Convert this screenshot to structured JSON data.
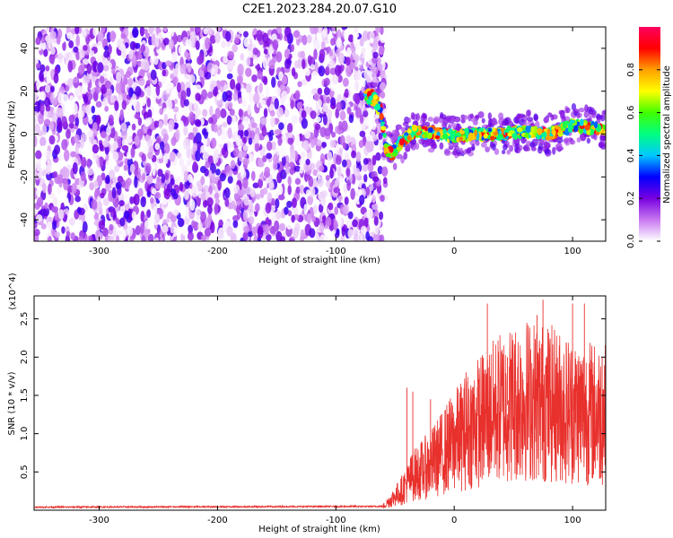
{
  "title": "C2E1.2023.284.20.07.G10",
  "chart_data": [
    {
      "type": "heatmap",
      "name": "spectrogram",
      "xlabel": "Height of straight line (km)",
      "ylabel": "Frequency (Hz)",
      "xlim": [
        -355,
        128
      ],
      "ylim": [
        -50,
        50
      ],
      "xticks": [
        -300,
        -200,
        -100,
        0,
        100
      ],
      "xtick_labels": [
        "-300",
        "-200",
        "-100",
        "0",
        "100"
      ],
      "yticks": [
        -40,
        -20,
        0,
        20,
        40
      ],
      "ytick_labels": [
        "-40",
        "-20",
        "0",
        "20",
        "40"
      ],
      "noise_region_x": [
        -355,
        -62
      ],
      "signal_transition_x": [
        -75,
        -50
      ],
      "signal_line": [
        {
          "x": -75,
          "y": 18
        },
        {
          "x": -68,
          "y": 17
        },
        {
          "x": -62,
          "y": 10
        },
        {
          "x": -57,
          "y": -8
        },
        {
          "x": -52,
          "y": -9
        },
        {
          "x": -45,
          "y": -4
        },
        {
          "x": -35,
          "y": 1
        },
        {
          "x": -20,
          "y": 1
        },
        {
          "x": 0,
          "y": -1
        },
        {
          "x": 20,
          "y": 0
        },
        {
          "x": 40,
          "y": 0
        },
        {
          "x": 60,
          "y": 1
        },
        {
          "x": 80,
          "y": 0
        },
        {
          "x": 100,
          "y": 4
        },
        {
          "x": 115,
          "y": 3
        },
        {
          "x": 128,
          "y": 2
        }
      ],
      "colorbar": {
        "label": "Normalized spectral amplitude",
        "range": [
          0.0,
          1.0
        ],
        "ticks": [
          0.0,
          0.2,
          0.4,
          0.6,
          0.8
        ],
        "tick_labels": [
          "0.0",
          "0.2",
          "0.4",
          "0.6",
          "0.8"
        ],
        "colors": [
          "#ffffff",
          "#c878f0",
          "#7800e0",
          "#0000ff",
          "#00c8ff",
          "#00ff80",
          "#40ff00",
          "#ffff00",
          "#ffa000",
          "#ff0000",
          "#ff0060"
        ]
      }
    },
    {
      "type": "line",
      "name": "snr",
      "xlabel": "Height of straight line (km)",
      "ylabel": "SNR (10 * v/v)",
      "scale_label": "(x10^4)",
      "xlim": [
        -355,
        128
      ],
      "ylim": [
        0,
        2.8
      ],
      "xticks": [
        -300,
        -200,
        -100,
        0,
        100
      ],
      "xtick_labels": [
        "-300",
        "-200",
        "-100",
        "0",
        "100"
      ],
      "yticks": [
        0.5,
        1.0,
        1.5,
        2.0,
        2.5
      ],
      "ytick_labels": [
        "0.5",
        "1.0",
        "1.5",
        "2.0",
        "2.5"
      ],
      "color": "#e8302c",
      "envelope": [
        {
          "x": -355,
          "y": 0.04
        },
        {
          "x": -60,
          "y": 0.05
        },
        {
          "x": -45,
          "y": 0.25
        },
        {
          "x": -35,
          "y": 0.45
        },
        {
          "x": -20,
          "y": 0.6
        },
        {
          "x": 0,
          "y": 0.9
        },
        {
          "x": 20,
          "y": 1.15
        },
        {
          "x": 40,
          "y": 1.35
        },
        {
          "x": 60,
          "y": 1.45
        },
        {
          "x": 80,
          "y": 1.4
        },
        {
          "x": 100,
          "y": 1.3
        },
        {
          "x": 128,
          "y": 1.25
        }
      ],
      "peaks": [
        {
          "x": -40,
          "y": 1.6
        },
        {
          "x": -35,
          "y": 1.55
        },
        {
          "x": -20,
          "y": 1.45
        },
        {
          "x": 10,
          "y": 1.8
        },
        {
          "x": 28,
          "y": 2.7
        },
        {
          "x": 45,
          "y": 2.0
        },
        {
          "x": 70,
          "y": 2.55
        },
        {
          "x": 75,
          "y": 2.75
        },
        {
          "x": 100,
          "y": 2.7
        },
        {
          "x": 110,
          "y": 2.7
        },
        {
          "x": 125,
          "y": 2.0
        }
      ]
    }
  ]
}
